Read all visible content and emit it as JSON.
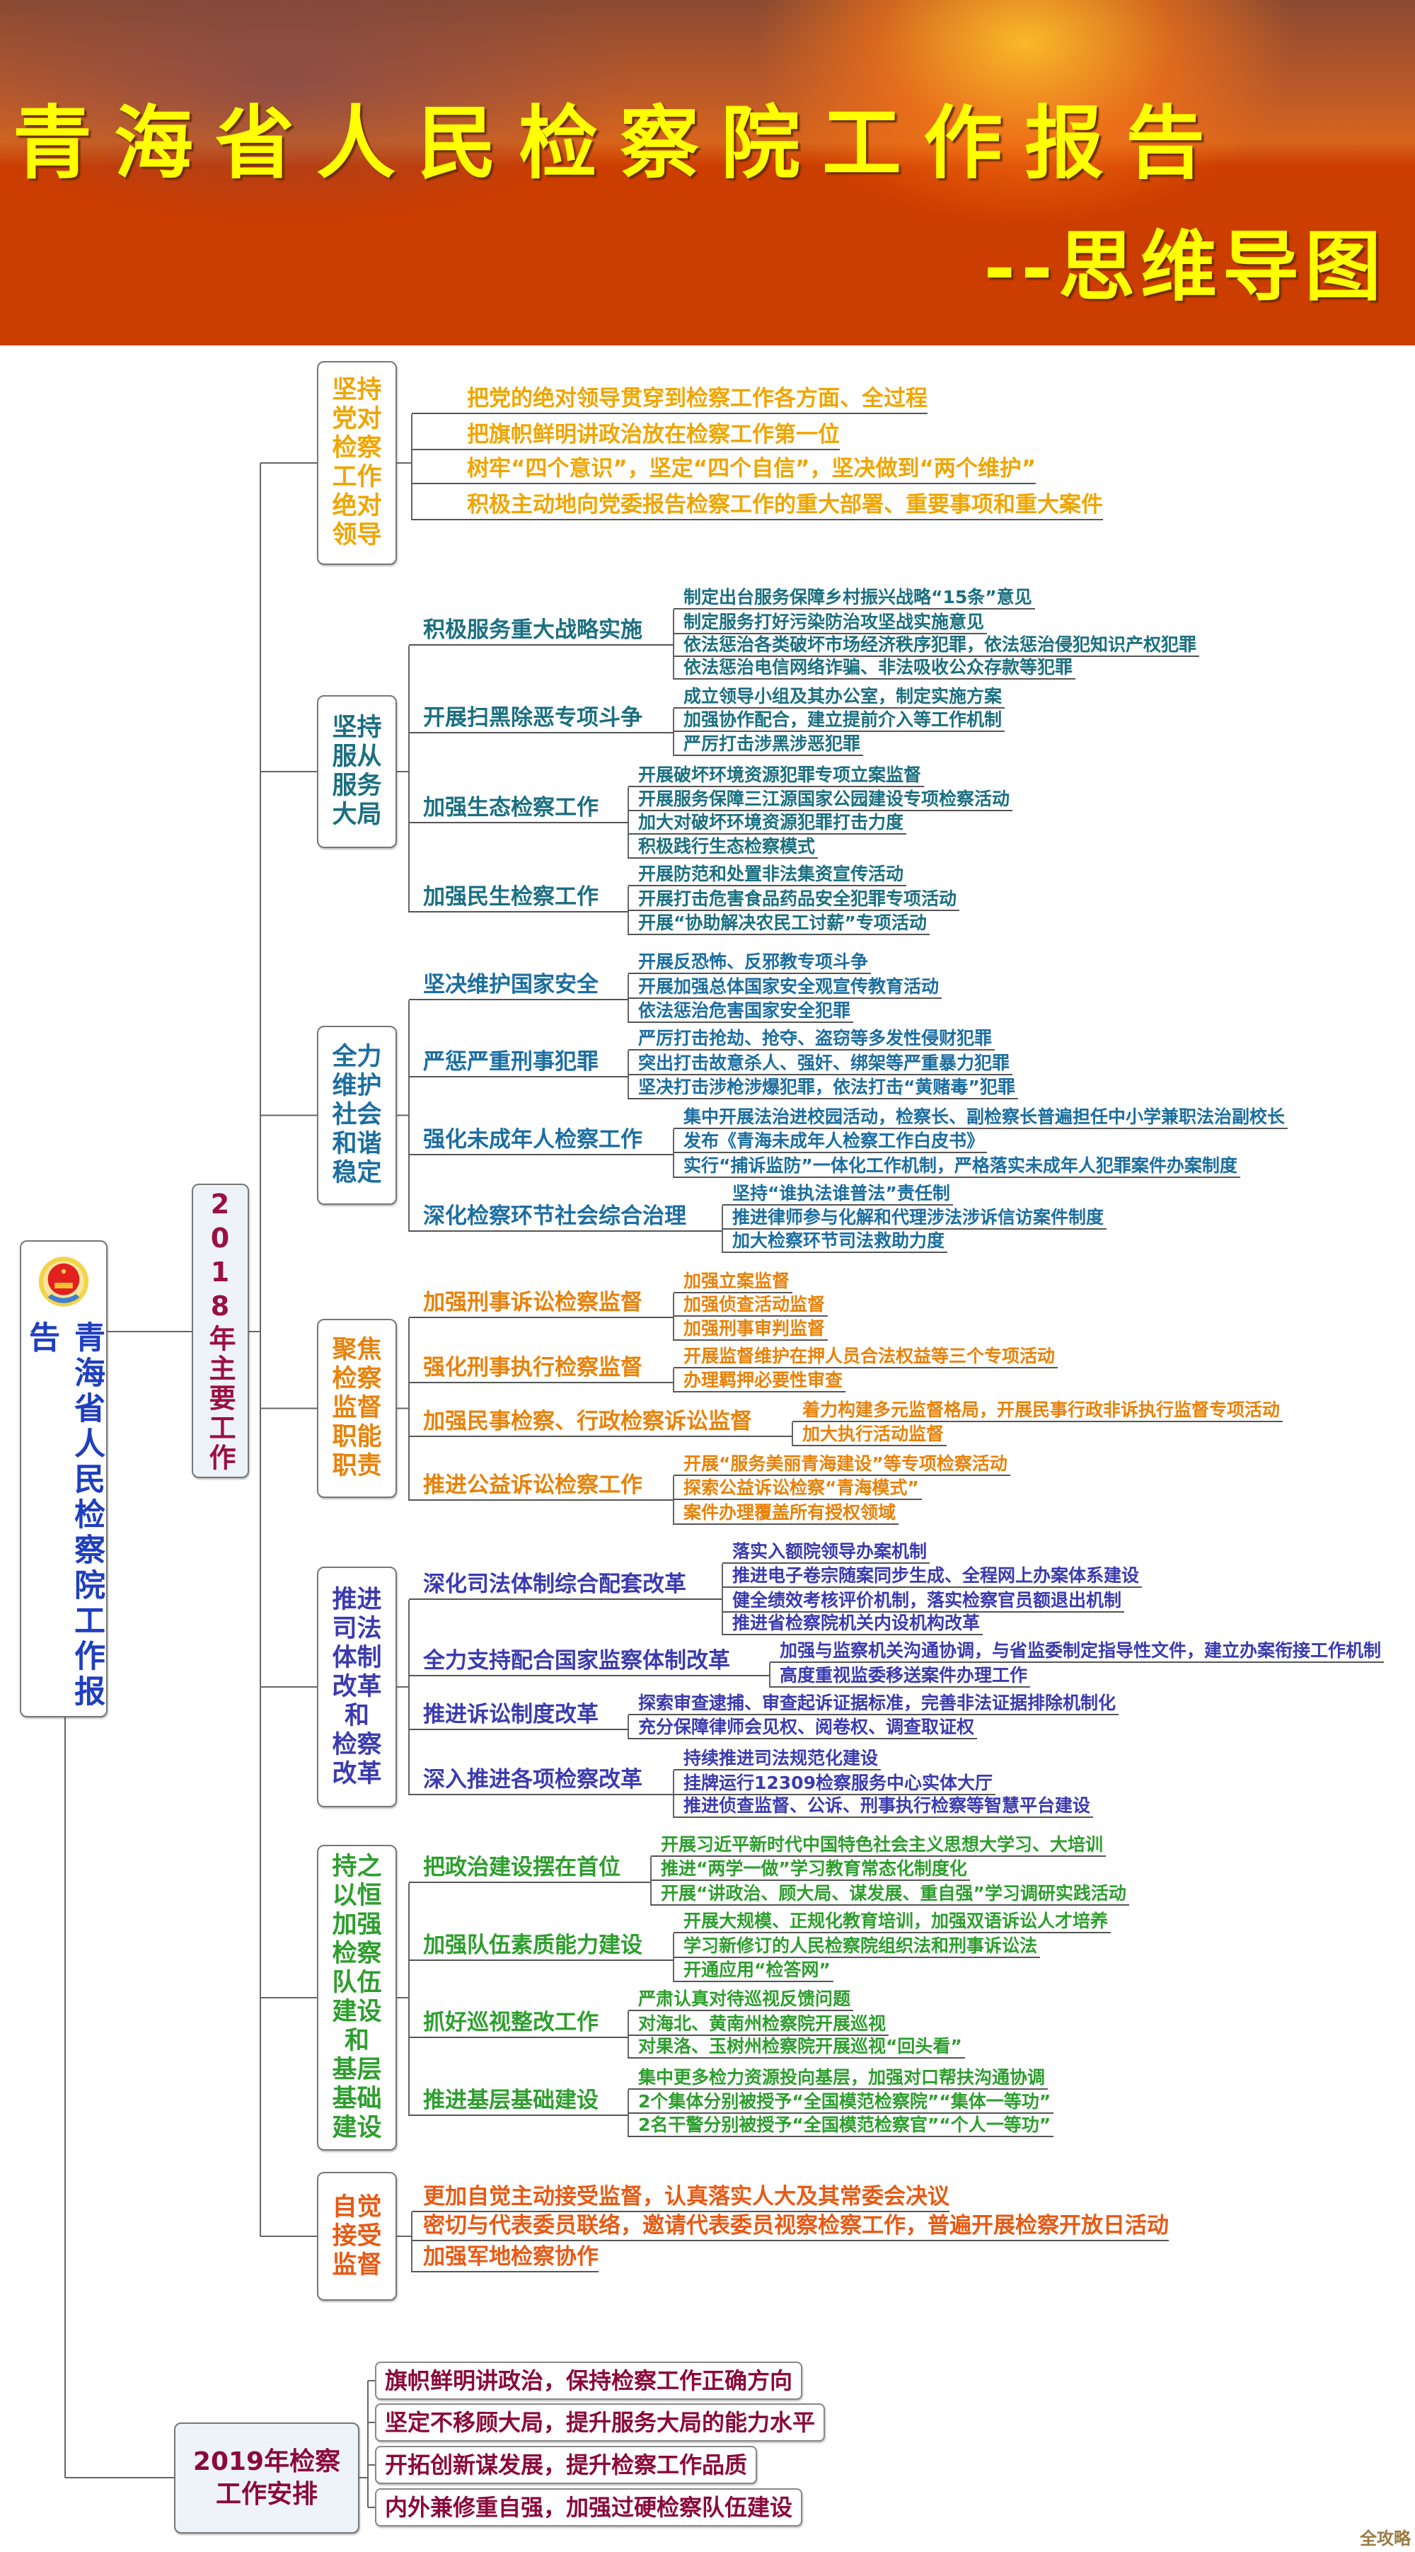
{
  "header": {
    "title": "青海省人民检察院工作报告",
    "subtitle": "--思维导图"
  },
  "root": {
    "title": "青海省人民检察院工作报告",
    "emblem": "procuratorate-emblem-icon"
  },
  "main_2018": {
    "label": "2018年主要工作",
    "color": "#9b1040"
  },
  "sections": [
    {
      "title_lines": [
        "坚持",
        "党对",
        "检察",
        "工作",
        "绝对",
        "领导"
      ],
      "color": "#f0a500",
      "items": [
        "把党的绝对领导贯穿到检察工作各方面、全过程",
        "把旗帜鲜明讲政治放在检察工作第一位",
        "树牢“四个意识”，坚定“四个自信”，坚决做到“两个维护”",
        "积极主动地向党委报告检察工作的重大部署、重要事项和重大案件"
      ]
    },
    {
      "title_lines": [
        "坚持",
        "服从",
        "服务",
        "大局"
      ],
      "color": "#1b6f80",
      "branches": [
        {
          "label": "积极服务重大战略实施",
          "leaves": [
            "制定出台服务保障乡村振兴战略“15条”意见",
            "制定服务打好污染防治攻坚战实施意见",
            "依法惩治各类破坏市场经济秩序犯罪，依法惩治侵犯知识产权犯罪",
            "依法惩治电信网络诈骗、非法吸收公众存款等犯罪"
          ]
        },
        {
          "label": "开展扫黑除恶专项斗争",
          "leaves": [
            "成立领导小组及其办公室，制定实施方案",
            "加强协作配合，建立提前介入等工作机制",
            "严厉打击涉黑涉恶犯罪"
          ]
        },
        {
          "label": "加强生态检察工作",
          "leaves": [
            "开展破坏环境资源犯罪专项立案监督",
            "开展服务保障三江源国家公园建设专项检察活动",
            "加大对破坏环境资源犯罪打击力度",
            "积极践行生态检察模式"
          ]
        },
        {
          "label": "加强民生检察工作",
          "leaves": [
            "开展防范和处置非法集资宣传活动",
            "开展打击危害食品药品安全犯罪专项活动",
            "开展“协助解决农民工讨薪”专项活动"
          ]
        }
      ]
    },
    {
      "title_lines": [
        "全力",
        "维护",
        "社会",
        "和谐",
        "稳定"
      ],
      "color": "#1c6ea0",
      "branches": [
        {
          "label": "坚决维护国家安全",
          "leaves": [
            "开展反恐怖、反邪教专项斗争",
            "开展加强总体国家安全观宣传教育活动",
            "依法惩治危害国家安全犯罪"
          ]
        },
        {
          "label": "严惩严重刑事犯罪",
          "leaves": [
            "严厉打击抢劫、抢夺、盗窃等多发性侵财犯罪",
            "突出打击故意杀人、强奸、绑架等严重暴力犯罪",
            "坚决打击涉枪涉爆犯罪，依法打击“黄赌毒”犯罪"
          ]
        },
        {
          "label": "强化未成年人检察工作",
          "leaves": [
            "集中开展法治进校园活动，检察长、副检察长普遍担任中小学兼职法治副校长",
            "发布《青海未成年人检察工作白皮书》",
            "实行“捕诉监防”一体化工作机制，严格落实未成年人犯罪案件办案制度"
          ]
        },
        {
          "label": "深化检察环节社会综合治理",
          "leaves": [
            "坚持“谁执法谁普法”责任制",
            "推进律师参与化解和代理涉法涉诉信访案件制度",
            "加大检察环节司法救助力度"
          ]
        }
      ]
    },
    {
      "title_lines": [
        "聚焦",
        "检察",
        "监督",
        "职能",
        "职责"
      ],
      "color": "#e8820a",
      "branches": [
        {
          "label": "加强刑事诉讼检察监督",
          "leaves": [
            "加强立案监督",
            "加强侦查活动监督",
            "加强刑事审判监督"
          ]
        },
        {
          "label": "强化刑事执行检察监督",
          "leaves": [
            "开展监督维护在押人员合法权益等三个专项活动",
            "办理羁押必要性审查"
          ]
        },
        {
          "label": "加强民事检察、行政检察诉讼监督",
          "leaves": [
            "着力构建多元监督格局，开展民事行政非诉执行监督专项活动",
            "加大执行活动监督"
          ]
        },
        {
          "label": "推进公益诉讼检察工作",
          "leaves": [
            "开展“服务美丽青海建设”等专项检察活动",
            "探索公益诉讼检察“青海模式”",
            "案件办理覆盖所有授权领域"
          ]
        }
      ]
    },
    {
      "title_lines": [
        "推进",
        "司法",
        "体制",
        "改革",
        "和",
        "检察",
        "改革"
      ],
      "color": "#3b3bb0",
      "branches": [
        {
          "label": "深化司法体制综合配套改革",
          "leaves": [
            "落实入额院领导办案机制",
            "推进电子卷宗随案同步生成、全程网上办案体系建设",
            "健全绩效考核评价机制，落实检察官员额退出机制",
            "推进省检察院机关内设机构改革"
          ]
        },
        {
          "label": "全力支持配合国家监察体制改革",
          "leaves": [
            "加强与监察机关沟通协调，与省监委制定指导性文件，建立办案衔接工作机制",
            "高度重视监委移送案件办理工作"
          ]
        },
        {
          "label": "推进诉讼制度改革",
          "leaves": [
            "探索审查逮捕、审查起诉证据标准，完善非法证据排除机制化",
            "充分保障律师会见权、阅卷权、调查取证权"
          ]
        },
        {
          "label": "深入推进各项检察改革",
          "leaves": [
            "持续推进司法规范化建设",
            "挂牌运行12309检察服务中心实体大厅",
            "推进侦查监督、公诉、刑事执行检察等智慧平台建设"
          ]
        }
      ]
    },
    {
      "title_lines": [
        "持之",
        "以恒",
        "加强",
        "检察",
        "队伍",
        "建设",
        "和",
        "基层",
        "基础",
        "建设"
      ],
      "color": "#2e9e2e",
      "branches": [
        {
          "label": "把政治建设摆在首位",
          "leaves": [
            "开展习近平新时代中国特色社会主义思想大学习、大培训",
            "推进“两学一做”学习教育常态化制度化",
            "开展“讲政治、顾大局、谋发展、重自强”学习调研实践活动"
          ]
        },
        {
          "label": "加强队伍素质能力建设",
          "leaves": [
            "开展大规模、正规化教育培训，加强双语诉讼人才培养",
            "学习新修订的人民检察院组织法和刑事诉讼法",
            "开通应用“检答网”"
          ]
        },
        {
          "label": "抓好巡视整改工作",
          "leaves": [
            "严肃认真对待巡视反馈问题",
            "对海北、黄南州检察院开展巡视",
            "对果洛、玉树州检察院开展巡视“回头看”"
          ]
        },
        {
          "label": "推进基层基础建设",
          "leaves": [
            "集中更多检力资源投向基层，加强对口帮扶沟通协调",
            "2个集体分别被授予“全国模范检察院”“集体一等功”",
            "2名干警分别被授予“全国模范检察官”“个人一等功”"
          ]
        }
      ]
    },
    {
      "title_lines": [
        "自觉",
        "接受",
        "监督"
      ],
      "color": "#e85a14",
      "items": [
        "更加自觉主动接受监督，认真落实人大及其常委会决议",
        "密切与代表委员联络，邀请代表委员视察检察工作，普遍开展检察开放日活动",
        "加强军地检察协作"
      ]
    }
  ],
  "plan_2019": {
    "title_lines": [
      "2019年检察",
      "工作安排"
    ],
    "color": "#8b0a3a",
    "items": [
      "旗帜鲜明讲政治，保持检察工作正确方向",
      "坚定不移顾大局，提升服务大局的能力水平",
      "开拓创新谋发展，提升检察工作品质",
      "内外兼修重自强，加强过硬检察队伍建设"
    ]
  },
  "watermark": "全攻略"
}
